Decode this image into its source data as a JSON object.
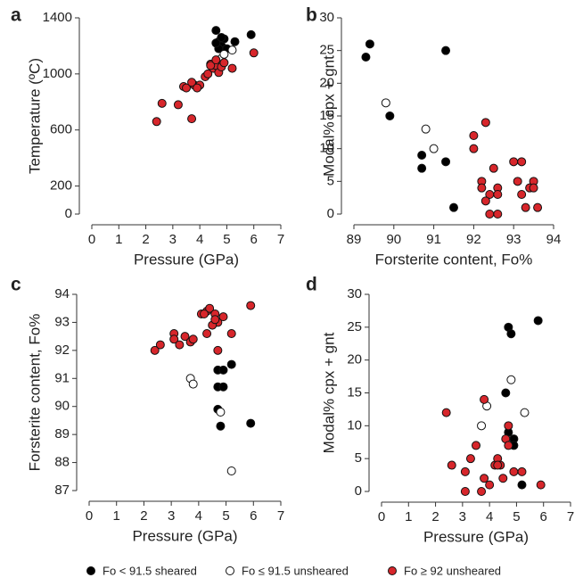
{
  "chart_data": [
    {
      "type": "scatter",
      "title": "a",
      "x_label": "Pressure (GPa)",
      "y_label": "Temperature (ºC)",
      "xlim": [
        0,
        7
      ],
      "ylim": [
        0,
        1400
      ],
      "xticks": [
        0,
        1,
        2,
        3,
        4,
        5,
        6,
        7
      ],
      "yticks": [
        0,
        200,
        600,
        1000,
        1400
      ],
      "series": [
        {
          "name": "Fo < 91.5 sheared",
          "color": "#000000",
          "x": [
            4.6,
            4.7,
            4.8,
            4.9,
            5.0,
            4.8,
            5.3,
            5.9,
            4.7,
            4.6
          ],
          "values": [
            1310,
            1230,
            1200,
            1250,
            1180,
            1260,
            1230,
            1280,
            1180,
            1220
          ]
        },
        {
          "name": "Fo ≤ 91.5 unsheared",
          "color": "#ffffff",
          "x": [
            4.8,
            5.2,
            4.9
          ],
          "values": [
            1110,
            1170,
            1140
          ]
        },
        {
          "name": "Fo ≥ 92 unsheared",
          "color": "#d7262b",
          "x": [
            2.4,
            2.6,
            3.2,
            3.7,
            3.4,
            3.5,
            3.8,
            4.0,
            3.7,
            4.2,
            4.3,
            4.4,
            4.5,
            4.6,
            4.7,
            4.4,
            4.8,
            5.2,
            6.0,
            4.9,
            3.9,
            4.6
          ],
          "values": [
            660,
            790,
            780,
            680,
            910,
            900,
            920,
            920,
            940,
            980,
            1000,
            1070,
            1040,
            1060,
            1010,
            1060,
            1050,
            1040,
            1150,
            1080,
            900,
            1100
          ]
        }
      ]
    },
    {
      "type": "scatter",
      "title": "b",
      "x_label": "Forsterite content, Fo%",
      "y_label": "Modal% cpx + gnt",
      "xlim": [
        89,
        94
      ],
      "ylim": [
        0,
        30
      ],
      "xticks": [
        89,
        90,
        91,
        92,
        93,
        94
      ],
      "yticks": [
        0,
        5,
        10,
        15,
        20,
        25,
        30
      ],
      "series": [
        {
          "color": "#000000",
          "x": [
            89.3,
            89.4,
            89.9,
            91.3,
            90.7,
            90.7,
            91.3,
            91.5
          ],
          "values": [
            24,
            26,
            15,
            25,
            9,
            7,
            8,
            1
          ]
        },
        {
          "color": "#ffffff",
          "x": [
            89.8,
            90.8,
            91.0
          ],
          "values": [
            17,
            13,
            10
          ]
        },
        {
          "color": "#d7262b",
          "x": [
            92.0,
            92.0,
            92.3,
            92.2,
            92.2,
            92.4,
            92.5,
            92.3,
            92.6,
            92.6,
            92.4,
            92.6,
            93.0,
            93.2,
            93.1,
            93.2,
            93.4,
            93.5,
            93.5,
            93.3,
            93.6
          ],
          "values": [
            12,
            10,
            14,
            5,
            4,
            3,
            7,
            2,
            4,
            3,
            0,
            0,
            8,
            8,
            5,
            3,
            4,
            5,
            4,
            1,
            1
          ]
        }
      ]
    },
    {
      "type": "scatter",
      "title": "c",
      "x_label": "Pressure (GPa)",
      "y_label": "Forsterite content, Fo%",
      "xlim": [
        0,
        7
      ],
      "ylim": [
        87,
        94
      ],
      "xticks": [
        0,
        1,
        2,
        3,
        4,
        5,
        6,
        7
      ],
      "yticks": [
        87,
        88,
        89,
        90,
        91,
        92,
        93,
        94
      ],
      "series": [
        {
          "color": "#000000",
          "x": [
            4.7,
            4.9,
            5.2,
            4.7,
            4.9,
            4.7,
            4.8,
            5.9
          ],
          "values": [
            91.3,
            91.3,
            91.5,
            90.7,
            90.7,
            89.9,
            89.3,
            89.4
          ]
        },
        {
          "color": "#ffffff",
          "x": [
            3.7,
            3.8,
            4.8,
            5.2
          ],
          "values": [
            91.0,
            90.8,
            89.8,
            87.7
          ]
        },
        {
          "color": "#d7262b",
          "x": [
            2.4,
            2.6,
            3.1,
            3.1,
            3.3,
            3.5,
            3.7,
            3.8,
            4.1,
            4.3,
            4.4,
            4.6,
            4.7,
            4.3,
            4.5,
            4.9,
            5.2,
            4.7,
            4.6,
            5.9,
            4.2
          ],
          "values": [
            92.0,
            92.2,
            92.6,
            92.4,
            92.2,
            92.5,
            92.3,
            92.4,
            93.3,
            93.4,
            93.5,
            93.3,
            93.0,
            92.6,
            92.9,
            93.2,
            92.6,
            92.0,
            93.1,
            93.6,
            93.3
          ]
        }
      ]
    },
    {
      "type": "scatter",
      "title": "d",
      "x_label": "Pressure (GPa)",
      "y_label": "Modal% cpx + gnt",
      "xlim": [
        0,
        7
      ],
      "ylim": [
        0,
        30
      ],
      "xticks": [
        0,
        1,
        2,
        3,
        4,
        5,
        6,
        7
      ],
      "yticks": [
        0,
        5,
        10,
        15,
        20,
        25,
        30
      ],
      "series": [
        {
          "color": "#000000",
          "x": [
            4.7,
            4.8,
            5.8,
            4.6,
            4.7,
            4.9,
            4.9,
            5.2
          ],
          "values": [
            25,
            24,
            26,
            15,
            9,
            8,
            7,
            1
          ]
        },
        {
          "color": "#ffffff",
          "x": [
            3.9,
            4.8,
            5.3,
            3.7
          ],
          "values": [
            13,
            17,
            12,
            10
          ]
        },
        {
          "color": "#d7262b",
          "x": [
            2.4,
            2.6,
            3.1,
            3.1,
            3.3,
            3.5,
            3.7,
            3.8,
            3.8,
            4.0,
            4.2,
            4.3,
            4.4,
            4.5,
            4.6,
            4.7,
            4.7,
            4.9,
            5.2,
            5.9,
            4.3
          ],
          "values": [
            12,
            4,
            3,
            0,
            5,
            7,
            0,
            2,
            14,
            1,
            4,
            5,
            4,
            2,
            8,
            10,
            7,
            3,
            3,
            1,
            4
          ]
        }
      ]
    }
  ]
}
